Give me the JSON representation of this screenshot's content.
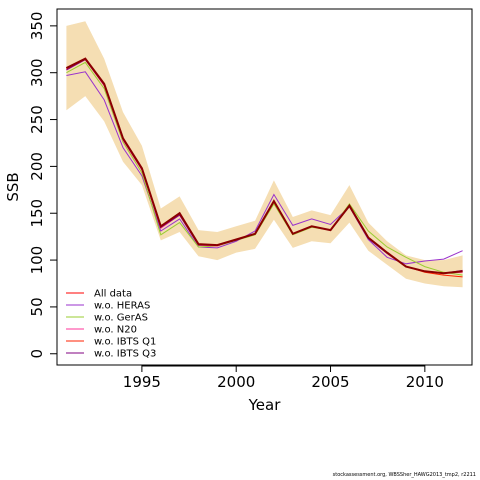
{
  "footer_text": "stockassessment.org, WBSSher_HAWG2013_tmp2, r2211",
  "chart_data": {
    "type": "line",
    "xlabel": "Year",
    "ylabel": "SSB",
    "xlim": [
      1990.5,
      2012.5
    ],
    "ylim": [
      -12,
      368
    ],
    "xticks": [
      1995,
      2000,
      2005,
      2010
    ],
    "yticks": [
      0,
      50,
      100,
      150,
      200,
      250,
      300,
      350
    ],
    "grid": false,
    "legend_position": "bottom-left",
    "band": {
      "color": "#f5deb3",
      "x": [
        1991,
        1992,
        1993,
        1994,
        1995,
        1996,
        1997,
        1998,
        1999,
        2000,
        2001,
        2002,
        2003,
        2004,
        2005,
        2006,
        2007,
        2008,
        2009,
        2010,
        2011,
        2012
      ],
      "lower": [
        260,
        275,
        248,
        205,
        180,
        121,
        130,
        104,
        100,
        108,
        112,
        143,
        113,
        120,
        118,
        140,
        110,
        95,
        80,
        75,
        72,
        71
      ],
      "upper": [
        350,
        355,
        315,
        258,
        222,
        155,
        168,
        132,
        130,
        136,
        142,
        185,
        146,
        153,
        148,
        180,
        140,
        120,
        105,
        100,
        100,
        105
      ]
    },
    "x": [
      1991,
      1992,
      1993,
      1994,
      1995,
      1996,
      1997,
      1998,
      1999,
      2000,
      2001,
      2002,
      2003,
      2004,
      2005,
      2006,
      2007,
      2008,
      2009,
      2010,
      2011,
      2012
    ],
    "series": [
      {
        "name": "All data",
        "color": "#ff0000",
        "values": [
          305,
          315,
          288,
          230,
          198,
          136,
          150,
          117,
          116,
          122,
          128,
          163,
          128,
          136,
          132,
          158,
          124,
          108,
          93,
          88,
          86,
          88
        ]
      },
      {
        "name": "w.o. HERAS",
        "color": "#9932cc",
        "values": [
          297,
          301,
          271,
          220,
          190,
          131,
          144,
          114,
          113,
          120,
          131,
          170,
          137,
          144,
          138,
          157,
          122,
          103,
          96,
          99,
          101,
          110
        ]
      },
      {
        "name": "w.o. GerAS",
        "color": "#9acd32",
        "values": [
          300,
          311,
          283,
          226,
          193,
          127,
          140,
          114,
          115,
          121,
          127,
          160,
          127,
          135,
          132,
          160,
          131,
          114,
          103,
          93,
          87,
          84
        ]
      },
      {
        "name": "w.o. N20",
        "color": "#ff3399",
        "values": [
          303,
          314,
          286,
          228,
          196,
          134,
          148,
          116,
          115,
          122,
          128,
          163,
          128,
          136,
          132,
          158,
          124,
          107,
          93,
          88,
          86,
          87
        ]
      },
      {
        "name": "w.o. IBTS Q1",
        "color": "#ff2200",
        "values": [
          304,
          314,
          287,
          229,
          197,
          135,
          149,
          116,
          116,
          122,
          128,
          162,
          128,
          136,
          132,
          158,
          124,
          108,
          93,
          87,
          84,
          82
        ]
      },
      {
        "name": "w.o. IBTS Q3",
        "color": "#800080",
        "values": [
          303,
          314,
          287,
          229,
          197,
          135,
          148,
          116,
          116,
          121,
          128,
          163,
          128,
          136,
          132,
          157,
          123,
          107,
          93,
          88,
          86,
          89
        ]
      }
    ],
    "main_line": {
      "color": "#8b0000"
    }
  }
}
